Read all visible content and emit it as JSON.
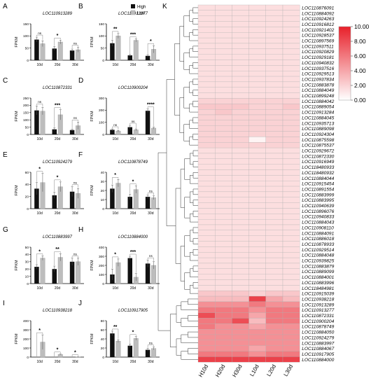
{
  "legend": {
    "items": [
      {
        "label": "High",
        "color": "#111111"
      },
      {
        "label": "Low",
        "color": "#bdbdbd"
      }
    ]
  },
  "heatmap": {
    "panel_letter": "K",
    "columns": [
      "H10d",
      "H20d",
      "H30d",
      "L10d",
      "L20d",
      "L30d"
    ],
    "rows": [
      "LOC110876091",
      "LOC110884092",
      "LOC110924263",
      "LOC110916812",
      "LOC110921402",
      "LOC110928537",
      "LOC110897569",
      "LOC110937511",
      "LOC110920829",
      "LOC110929181",
      "LOC110940832",
      "LOC110937516",
      "LOC110929513",
      "LOC110937834",
      "LOC110883878",
      "LOC110884049",
      "LOC110899248",
      "LOC110884042",
      "LOC110889054",
      "LOC110913284",
      "LOC110884045",
      "LOC110935713",
      "LOC110889098",
      "LOC110924304",
      "LOC110875598",
      "LOC110875537",
      "LOC110929672",
      "LOC110872330",
      "LOC110916949",
      "LOC118480933",
      "LOC118480932",
      "LOC110884044",
      "LOC110915454",
      "LOC110891554",
      "LOC110883999",
      "LOC110883995",
      "LOC110940639",
      "LOC110896076",
      "LOC110940833",
      "LOC110884043",
      "LOC110908110",
      "LOC110884091",
      "LOC110886018",
      "LOC110878933",
      "LOC110929514",
      "LOC110884048",
      "LOC110939825",
      "LOC110883879",
      "LOC110889099",
      "LOC110884001",
      "LOC110883996",
      "LOC118484981",
      "LOC110915039",
      "LOC110938218",
      "LOC110913289",
      "LOC110913277",
      "LOC110872331",
      "LOC110900204",
      "LOC110878749",
      "LOC110884050",
      "LOC110924279",
      "LOC110883997",
      "LOC110884067",
      "LOC110917905",
      "LOC110884000"
    ],
    "values": [
      [
        1.5,
        1.5,
        1.5,
        1.5,
        1.5,
        1.5
      ],
      [
        1.5,
        1.5,
        1.5,
        1.5,
        1.5,
        1.5
      ],
      [
        1.5,
        1.5,
        1.5,
        1.5,
        1.5,
        1.5
      ],
      [
        1.5,
        1.5,
        1.5,
        1.5,
        1.5,
        1.5
      ],
      [
        1.5,
        1.5,
        1.5,
        1.5,
        1.5,
        1.5
      ],
      [
        1.5,
        1.5,
        1.5,
        1.5,
        1.5,
        1.5
      ],
      [
        1.5,
        1.5,
        1.5,
        1.5,
        1.5,
        1.5
      ],
      [
        1.5,
        1.5,
        1.5,
        1.5,
        1.5,
        1.5
      ],
      [
        1.5,
        1.5,
        1.5,
        1.5,
        1.5,
        1.5
      ],
      [
        1.5,
        1.5,
        1.5,
        1.5,
        1.5,
        1.5
      ],
      [
        1.5,
        1.5,
        1.5,
        1.5,
        1.5,
        1.5
      ],
      [
        1.5,
        1.5,
        1.5,
        1.5,
        1.5,
        1.5
      ],
      [
        1.5,
        1.5,
        1.5,
        1.5,
        1.5,
        1.5
      ],
      [
        1.5,
        1.5,
        1.5,
        1.5,
        1.5,
        1.5
      ],
      [
        1.5,
        1.5,
        1.5,
        1.5,
        1.5,
        1.5
      ],
      [
        1.5,
        1.5,
        1.5,
        1.5,
        1.5,
        1.5
      ],
      [
        1.5,
        1.5,
        1.5,
        1.5,
        1.5,
        1.5
      ],
      [
        2,
        2,
        2,
        2,
        2,
        2
      ],
      [
        2.5,
        2.5,
        2.5,
        2,
        2,
        2.5
      ],
      [
        2,
        2.5,
        2,
        2,
        2,
        2
      ],
      [
        2,
        2,
        2,
        2,
        2,
        2
      ],
      [
        2,
        2,
        2,
        2,
        2,
        2
      ],
      [
        2,
        2,
        2,
        2,
        2,
        2
      ],
      [
        2,
        2,
        2,
        2,
        2,
        2
      ],
      [
        2,
        2,
        2,
        0.5,
        2,
        2
      ],
      [
        2,
        2,
        2,
        2,
        2,
        2
      ],
      [
        1.5,
        1.5,
        1.5,
        1.5,
        1.5,
        1.5
      ],
      [
        1.5,
        1.5,
        1.5,
        1.5,
        1.5,
        1.5
      ],
      [
        1.5,
        1.5,
        1.5,
        1.5,
        1.5,
        1.5
      ],
      [
        1.5,
        1.5,
        1.5,
        1.5,
        1.5,
        1.5
      ],
      [
        1.5,
        1.5,
        1.5,
        1.5,
        1.5,
        1.5
      ],
      [
        1.5,
        1.5,
        1.5,
        1.5,
        1.5,
        1.5
      ],
      [
        1.5,
        1.5,
        1.5,
        1.5,
        1.5,
        1.5
      ],
      [
        1.5,
        1.5,
        1.5,
        1.5,
        1.5,
        1.5
      ],
      [
        1.5,
        1.5,
        1.5,
        1.5,
        1.5,
        1.5
      ],
      [
        1.5,
        1.5,
        1.5,
        1.5,
        1.5,
        1.5
      ],
      [
        1.5,
        1.5,
        1.5,
        1.5,
        1.5,
        1.5
      ],
      [
        1.5,
        1.5,
        1.5,
        1.5,
        1.5,
        1.5
      ],
      [
        1.5,
        1.5,
        1.5,
        1.5,
        1.5,
        1.5
      ],
      [
        1.5,
        1.5,
        1.5,
        1.5,
        1.5,
        1.5
      ],
      [
        1.5,
        1.5,
        1.5,
        1.5,
        1.5,
        1.5
      ],
      [
        1.5,
        1.5,
        1.5,
        1.5,
        1.5,
        1.5
      ],
      [
        1.5,
        1.5,
        1.5,
        1.5,
        1.5,
        1.5
      ],
      [
        1.5,
        1.5,
        1.5,
        1.5,
        1.5,
        1.5
      ],
      [
        1.5,
        1.5,
        1.5,
        1.5,
        1.5,
        1.5
      ],
      [
        1.5,
        1.5,
        1.5,
        1.5,
        1.5,
        1.5
      ],
      [
        1.5,
        1.5,
        1.5,
        1.5,
        1.5,
        1.5
      ],
      [
        1.5,
        1.5,
        1.5,
        1.5,
        1.5,
        1.5
      ],
      [
        1.5,
        1.5,
        1.5,
        1.5,
        1.5,
        1.5
      ],
      [
        1.5,
        1.5,
        1.5,
        1.5,
        1.5,
        1.5
      ],
      [
        1.5,
        1.5,
        1.5,
        1.5,
        1.5,
        1.5
      ],
      [
        1.5,
        1.5,
        1.5,
        1.5,
        1.5,
        1.5
      ],
      [
        2.5,
        2.5,
        2.5,
        2,
        2.5,
        2.5
      ],
      [
        3,
        3,
        3,
        8.5,
        4,
        3
      ],
      [
        5,
        5,
        5,
        6,
        5,
        5
      ],
      [
        6,
        6,
        6,
        5,
        6,
        6
      ],
      [
        8,
        6,
        6,
        4,
        6,
        6
      ],
      [
        6,
        6,
        8,
        3,
        6,
        6
      ],
      [
        6,
        5,
        5,
        4,
        5,
        5
      ],
      [
        5,
        5,
        5,
        5,
        5,
        5
      ],
      [
        5,
        5,
        5,
        5,
        5,
        5
      ],
      [
        5,
        5,
        5,
        5,
        5,
        5
      ],
      [
        5,
        5,
        5,
        4,
        5,
        5
      ],
      [
        6,
        6,
        6,
        5,
        6,
        6
      ],
      [
        8.5,
        8.5,
        8.5,
        8.5,
        8.5,
        8.5
      ]
    ],
    "scale": {
      "ticks": [
        "10.00",
        "8.00",
        "6.00",
        "4.00",
        "2.00",
        "0.00"
      ],
      "min": 0,
      "max": 10,
      "low_color": "#ffffff",
      "high_color": "#e8202a"
    }
  },
  "chart_data": [
    {
      "type": "bar",
      "panel": "A",
      "title": "LOC110913289",
      "ylabel": "FPKM",
      "categories": [
        "10d",
        "20d",
        "30d"
      ],
      "series": [
        {
          "name": "High",
          "values": [
            85,
            48,
            40
          ],
          "errors": [
            10,
            8,
            6
          ]
        },
        {
          "name": "Low",
          "values": [
            68,
            75,
            43
          ],
          "errors": [
            12,
            8,
            10
          ]
        }
      ],
      "ylim": [
        0,
        150
      ],
      "yticks": [
        0,
        50,
        100,
        150
      ],
      "significance": [
        "ns",
        "*",
        "ns"
      ]
    },
    {
      "type": "bar",
      "panel": "B",
      "title": "LOC110913277",
      "ylabel": "FPKM",
      "categories": [
        "10d",
        "20d",
        "30d"
      ],
      "series": [
        {
          "name": "High",
          "values": [
            70,
            20,
            18
          ],
          "errors": [
            12,
            4,
            5
          ]
        },
        {
          "name": "Low",
          "values": [
            100,
            82,
            45
          ],
          "errors": [
            10,
            6,
            15
          ]
        }
      ],
      "ylim": [
        0,
        150
      ],
      "yticks": [
        0,
        50,
        100,
        150
      ],
      "significance": [
        "**",
        "***",
        "*"
      ]
    },
    {
      "type": "bar",
      "panel": "C",
      "title": "LOC110872331",
      "ylabel": "FPKM",
      "categories": [
        "10d",
        "20d",
        "30d"
      ],
      "series": [
        {
          "name": "High",
          "values": [
            165,
            35,
            30
          ],
          "errors": [
            30,
            10,
            5
          ]
        },
        {
          "name": "Low",
          "values": [
            160,
            135,
            60
          ],
          "errors": [
            25,
            35,
            25
          ]
        }
      ],
      "ylim": [
        0,
        250
      ],
      "yticks": [
        0,
        50,
        100,
        150,
        200,
        250
      ],
      "significance": [
        "ns",
        "***",
        "ns"
      ]
    },
    {
      "type": "bar",
      "panel": "D",
      "title": "LOC110900204",
      "ylabel": "FPKM",
      "categories": [
        "10d",
        "20d",
        "30d"
      ],
      "series": [
        {
          "name": "High",
          "values": [
            38,
            60,
            195
          ],
          "errors": [
            8,
            15,
            15
          ]
        },
        {
          "name": "Low",
          "values": [
            28,
            38,
            52
          ],
          "errors": [
            5,
            8,
            8
          ]
        }
      ],
      "ylim": [
        0,
        300
      ],
      "yticks": [
        0,
        100,
        200,
        300
      ],
      "significance": [
        "ns",
        "ns",
        "****"
      ]
    },
    {
      "type": "bar",
      "panel": "E",
      "title": "LOC110924279",
      "ylabel": "FPKM",
      "categories": [
        "10d",
        "20d",
        "30d"
      ],
      "series": [
        {
          "name": "High",
          "values": [
            33,
            22,
            28
          ],
          "errors": [
            10,
            5,
            8
          ]
        },
        {
          "name": "Low",
          "values": [
            43,
            36,
            25
          ],
          "errors": [
            15,
            8,
            8
          ]
        }
      ],
      "ylim": [
        0,
        60
      ],
      "yticks": [
        0,
        20,
        40,
        60
      ],
      "significance": [
        "*",
        "*",
        "ns"
      ]
    },
    {
      "type": "bar",
      "panel": "F",
      "title": "LOC110878749",
      "ylabel": "FPKM",
      "categories": [
        "10d",
        "20d",
        "30d"
      ],
      "series": [
        {
          "name": "High",
          "values": [
            22,
            13,
            13
          ],
          "errors": [
            4,
            3,
            2
          ]
        },
        {
          "name": "Low",
          "values": [
            28,
            21,
            12
          ],
          "errors": [
            4,
            4,
            2
          ]
        }
      ],
      "ylim": [
        0,
        40
      ],
      "yticks": [
        0,
        10,
        20,
        30,
        40
      ],
      "significance": [
        "*",
        "*",
        "ns"
      ]
    },
    {
      "type": "bar",
      "panel": "G",
      "title": "LOC110883997",
      "ylabel": "FPKM",
      "categories": [
        "10d",
        "20d",
        "30d"
      ],
      "series": [
        {
          "name": "High",
          "values": [
            23,
            20,
            30
          ],
          "errors": [
            3,
            4,
            5
          ]
        },
        {
          "name": "Low",
          "values": [
            35,
            36,
            30
          ],
          "errors": [
            3,
            5,
            5
          ]
        }
      ],
      "ylim": [
        0,
        50
      ],
      "yticks": [
        0,
        10,
        20,
        30,
        40,
        50
      ],
      "significance": [
        "*",
        "**",
        "ns"
      ]
    },
    {
      "type": "bar",
      "panel": "H",
      "title": "LOC110884000",
      "ylabel": "FPKM",
      "categories": [
        "10d",
        "20d",
        "30d"
      ],
      "series": [
        {
          "name": "High",
          "values": [
            100,
            280,
            220
          ],
          "errors": [
            60,
            20,
            40
          ]
        },
        {
          "name": "Low",
          "values": [
            230,
            70,
            200
          ],
          "errors": [
            40,
            40,
            40
          ]
        }
      ],
      "ylim": [
        0,
        400
      ],
      "yticks": [
        0,
        100,
        200,
        300,
        400
      ],
      "significance": [
        "*",
        "***",
        "ns"
      ]
    },
    {
      "type": "bar",
      "panel": "I",
      "title": "LOC110938218",
      "ylabel": "FPKM",
      "categories": [
        "10d",
        "20d",
        "30d"
      ],
      "series": [
        {
          "name": "High",
          "values": [
            0,
            0,
            0
          ],
          "errors": [
            0,
            0,
            0
          ]
        },
        {
          "name": "Low",
          "values": [
            165,
            30,
            2
          ],
          "errors": [
            80,
            3,
            1
          ]
        }
      ],
      "ylim": [
        0,
        400
      ],
      "yticks": [
        0,
        100,
        200,
        300,
        400
      ],
      "significance": [
        "*",
        "*",
        "*"
      ]
    },
    {
      "type": "bar",
      "panel": "J",
      "title": "LOC110917905",
      "ylabel": "FPKM",
      "categories": [
        "10d",
        "20d",
        "30d"
      ],
      "series": [
        {
          "name": "High",
          "values": [
            52,
            25,
            16
          ],
          "errors": [
            5,
            4,
            3
          ]
        },
        {
          "name": "Low",
          "values": [
            35,
            41,
            19
          ],
          "errors": [
            3,
            4,
            3
          ]
        }
      ],
      "ylim": [
        0,
        80
      ],
      "yticks": [
        0,
        20,
        40,
        60,
        80
      ],
      "significance": [
        "**",
        "*",
        "ns"
      ]
    }
  ]
}
